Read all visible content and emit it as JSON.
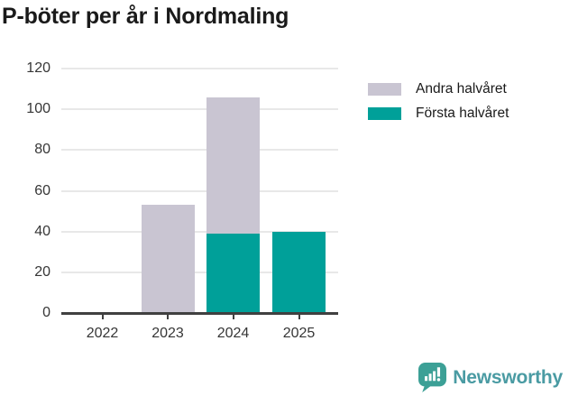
{
  "title": "P-böter per år i Nordmaling",
  "legend": [
    {
      "label": "Andra halvåret",
      "color": "#C9C5D2"
    },
    {
      "label": "Första halvåret",
      "color": "#00A099"
    }
  ],
  "footer": {
    "brand": "Newsworthy",
    "brand_color": "#4A9BA3",
    "badge_color": "#3CA096"
  },
  "chart_data": {
    "type": "bar",
    "stacked": true,
    "title": "P-böter per år i Nordmaling",
    "categories": [
      "2022",
      "2023",
      "2024",
      "2025"
    ],
    "series": [
      {
        "name": "Första halvåret",
        "color": "#00A099",
        "values": [
          0,
          0,
          39,
          40
        ]
      },
      {
        "name": "Andra halvåret",
        "color": "#C9C5D2",
        "values": [
          0,
          53,
          67,
          0
        ]
      }
    ],
    "totals": [
      0,
      53,
      106,
      40
    ],
    "xlabel": "",
    "ylabel": "",
    "ylim": [
      0,
      120
    ],
    "yticks": [
      0,
      20,
      40,
      60,
      80,
      100,
      120
    ],
    "grid": true,
    "legend_position": "top-right",
    "axis_color": "#404040",
    "grid_color": "#E8E8E8",
    "tick_label_color": "#363636"
  }
}
